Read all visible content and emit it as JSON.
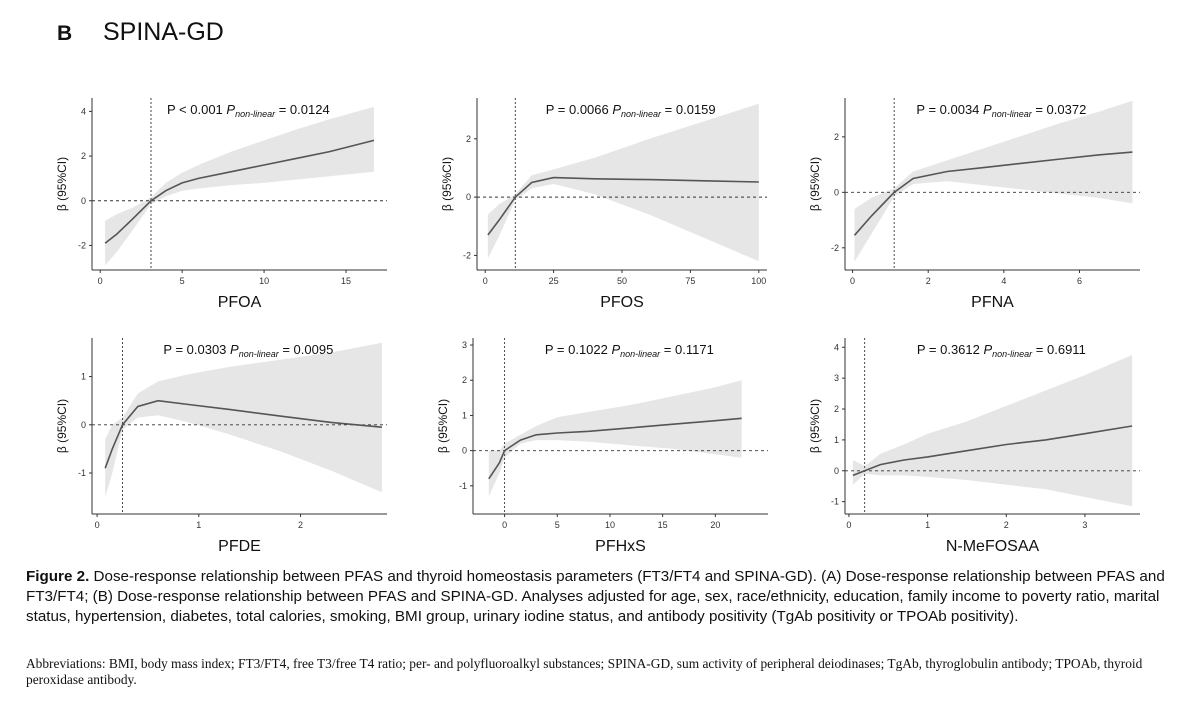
{
  "panel": {
    "letter": "B",
    "title": "SPINA-GD"
  },
  "caption": {
    "label": "Figure 2.",
    "text": "Dose-response relationship between PFAS and thyroid homeostasis parameters (FT3/FT4 and SPINA-GD). (A) Dose-response relationship between PFAS and FT3/FT4; (B) Dose-response relationship between PFAS and SPINA-GD. Analyses adjusted for age, sex, race/ethnicity, education, family income to poverty ratio, marital status, hypertension, diabetes, total calories, smoking, BMI group, urinary iodine status, and antibody positivity (TgAb positivity or TPOAb positivity)."
  },
  "abbreviations": "Abbreviations: BMI, body mass index; FT3/FT4, free T3/free T4 ratio; per- and polyfluoroalkyl substances; SPINA-GD, sum activity of peripheral deiodinases; TgAb, thyroglobulin antibody; TPOAb, thyroid peroxidase antibody.",
  "colors": {
    "band": "#e6e6e6",
    "line": "#555555",
    "axis": "#333333"
  },
  "chart_data": [
    {
      "type": "line",
      "xlabel": "PFOA",
      "ylabel": "β (95%CI)",
      "p_text": "P < 0.001",
      "pnl_text": "= 0.0124",
      "pnl_label": "non-linear",
      "xlim": [
        -0.5,
        17.5
      ],
      "ylim": [
        -3.1,
        4.6
      ],
      "xticks": [
        0,
        5,
        10,
        15
      ],
      "yticks": [
        -2,
        0,
        2,
        4
      ],
      "ref_x": 3.1,
      "x": [
        0.3,
        1.0,
        2.0,
        3.1,
        4.0,
        5.0,
        6.0,
        8.0,
        10.0,
        12.0,
        14.0,
        16.7
      ],
      "y": [
        -1.9,
        -1.5,
        -0.8,
        0.0,
        0.45,
        0.8,
        1.0,
        1.3,
        1.6,
        1.9,
        2.2,
        2.7
      ],
      "lower": [
        -2.9,
        -2.3,
        -1.3,
        -0.15,
        0.2,
        0.45,
        0.55,
        0.7,
        0.8,
        0.95,
        1.1,
        1.3
      ],
      "upper": [
        -0.9,
        -0.6,
        -0.3,
        0.15,
        0.8,
        1.25,
        1.6,
        2.2,
        2.7,
        3.2,
        3.65,
        4.2
      ]
    },
    {
      "type": "line",
      "xlabel": "PFOS",
      "ylabel": "β (95%CI)",
      "p_text": "P = 0.0066",
      "pnl_text": "= 0.0159",
      "pnl_label": "non-linear",
      "xlim": [
        -3,
        103
      ],
      "ylim": [
        -2.5,
        3.4
      ],
      "xticks": [
        0,
        25,
        50,
        75,
        100
      ],
      "yticks": [
        -2,
        0,
        2
      ],
      "ref_x": 11,
      "x": [
        1,
        5,
        11,
        17,
        25,
        40,
        60,
        80,
        100
      ],
      "y": [
        -1.3,
        -0.8,
        0.0,
        0.5,
        0.67,
        0.63,
        0.6,
        0.56,
        0.52
      ],
      "lower": [
        -2.1,
        -1.35,
        -0.1,
        0.3,
        0.45,
        0.1,
        -0.6,
        -1.4,
        -2.2
      ],
      "upper": [
        -0.6,
        -0.25,
        0.1,
        0.75,
        0.95,
        1.35,
        2.0,
        2.6,
        3.2
      ]
    },
    {
      "type": "line",
      "xlabel": "PFNA",
      "ylabel": "β (95%CI)",
      "p_text": "P = 0.0034",
      "pnl_text": "= 0.0372",
      "pnl_label": "non-linear",
      "xlim": [
        -0.2,
        7.6
      ],
      "ylim": [
        -2.8,
        3.4
      ],
      "xticks": [
        0,
        2,
        4,
        6
      ],
      "yticks": [
        -2,
        0,
        2
      ],
      "ref_x": 1.1,
      "x": [
        0.05,
        0.5,
        1.1,
        1.6,
        2.5,
        3.5,
        4.5,
        5.5,
        6.5,
        7.4
      ],
      "y": [
        -1.55,
        -0.85,
        0.0,
        0.5,
        0.75,
        0.9,
        1.05,
        1.2,
        1.35,
        1.45
      ],
      "lower": [
        -2.5,
        -1.5,
        -0.15,
        0.3,
        0.4,
        0.25,
        0.1,
        -0.05,
        -0.2,
        -0.4
      ],
      "upper": [
        -0.6,
        -0.2,
        0.15,
        0.75,
        1.15,
        1.6,
        2.05,
        2.5,
        2.9,
        3.3
      ]
    },
    {
      "type": "line",
      "xlabel": "PFDE",
      "ylabel": "β (95%CI)",
      "p_text": "P = 0.0303",
      "pnl_text": "= 0.0095",
      "pnl_label": "non-linear",
      "xlim": [
        -0.05,
        2.85
      ],
      "ylim": [
        -1.85,
        1.8
      ],
      "xticks": [
        0,
        1,
        2
      ],
      "yticks": [
        -1,
        0,
        1
      ],
      "ref_x": 0.25,
      "x": [
        0.08,
        0.15,
        0.25,
        0.4,
        0.6,
        0.9,
        1.3,
        1.8,
        2.3,
        2.8
      ],
      "y": [
        -0.9,
        -0.5,
        0.0,
        0.38,
        0.5,
        0.42,
        0.32,
        0.18,
        0.05,
        -0.05
      ],
      "lower": [
        -1.5,
        -1.0,
        -0.1,
        0.15,
        0.2,
        0.05,
        -0.2,
        -0.55,
        -0.95,
        -1.4
      ],
      "upper": [
        -0.3,
        0.0,
        0.15,
        0.65,
        0.9,
        1.05,
        1.2,
        1.35,
        1.5,
        1.7
      ]
    },
    {
      "type": "line",
      "xlabel": "PFHxS",
      "ylabel": "β (95%CI)",
      "p_text": "P = 0.1022",
      "pnl_text": "= 0.1171",
      "pnl_label": "non-linear",
      "xlim": [
        -3,
        25
      ],
      "ylim": [
        -1.8,
        3.2
      ],
      "xticks": [
        0,
        5,
        10,
        15,
        20
      ],
      "yticks": [
        -1,
        0,
        1,
        2,
        3
      ],
      "ref_x": 0,
      "x": [
        -1.5,
        -0.5,
        0,
        1.5,
        3,
        5,
        8,
        12,
        16,
        20,
        22.5
      ],
      "y": [
        -0.8,
        -0.35,
        0.0,
        0.3,
        0.45,
        0.5,
        0.55,
        0.65,
        0.75,
        0.85,
        0.92
      ],
      "lower": [
        -1.3,
        -0.65,
        -0.2,
        0.2,
        0.3,
        0.3,
        0.25,
        0.15,
        0.05,
        -0.1,
        -0.2
      ],
      "upper": [
        0.0,
        0.0,
        0.2,
        0.45,
        0.7,
        0.95,
        1.1,
        1.3,
        1.55,
        1.8,
        2.0
      ]
    },
    {
      "type": "line",
      "xlabel": "N-MeFOSAA",
      "ylabel": "β (95%CI)",
      "p_text": "P = 0.3612",
      "pnl_text": "= 0.6911",
      "pnl_label": "non-linear",
      "xlim": [
        -0.05,
        3.7
      ],
      "ylim": [
        -1.4,
        4.3
      ],
      "xticks": [
        0,
        1,
        2,
        3
      ],
      "yticks": [
        -1,
        0,
        1,
        2,
        3,
        4
      ],
      "ref_x": 0.2,
      "x": [
        0.05,
        0.2,
        0.4,
        0.7,
        1.0,
        1.5,
        2.0,
        2.5,
        3.0,
        3.6
      ],
      "y": [
        -0.15,
        0.0,
        0.2,
        0.35,
        0.45,
        0.65,
        0.85,
        1.0,
        1.2,
        1.45
      ],
      "lower": [
        -0.45,
        -0.1,
        -0.15,
        -0.15,
        -0.2,
        -0.3,
        -0.45,
        -0.6,
        -0.85,
        -1.15
      ],
      "upper": [
        0.35,
        0.15,
        0.55,
        0.85,
        1.2,
        1.6,
        2.1,
        2.6,
        3.1,
        3.75
      ]
    }
  ]
}
